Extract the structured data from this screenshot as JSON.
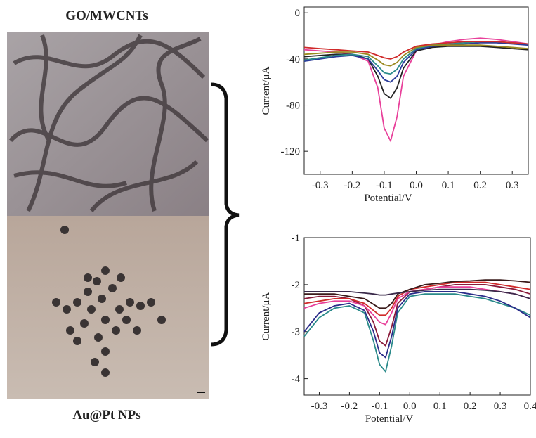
{
  "panels": {
    "top_label": "GO/MWCNTs",
    "bottom_label": "Au@Pt NPs"
  },
  "chart_data": [
    {
      "type": "line",
      "xlabel": "Potential/V",
      "ylabel": "Current/μA",
      "xlim": [
        -0.35,
        0.35
      ],
      "ylim": [
        -140,
        5
      ],
      "xticks": [
        -0.3,
        -0.2,
        -0.1,
        {
          "value": 0,
          "label": "0.0"
        },
        0.1,
        0.2,
        0.3
      ],
      "yticks": [
        0,
        -40,
        -80,
        -120
      ],
      "x": [
        -0.35,
        -0.3,
        -0.25,
        -0.2,
        -0.15,
        -0.12,
        -0.1,
        -0.08,
        -0.06,
        -0.04,
        0,
        0.05,
        0.1,
        0.15,
        0.2,
        0.25,
        0.3,
        0.35
      ],
      "series": [
        {
          "color": "#e8409a",
          "values": [
            -32,
            -33,
            -34,
            -36,
            -42,
            -65,
            -100,
            -111,
            -90,
            -55,
            -33,
            -28,
            -25,
            -23,
            -22,
            -23,
            -25,
            -27
          ]
        },
        {
          "color": "#222222",
          "values": [
            -38,
            -37,
            -36,
            -36,
            -40,
            -55,
            -70,
            -74,
            -65,
            -48,
            -33,
            -30,
            -29,
            -29,
            -29,
            -30,
            -31,
            -32
          ]
        },
        {
          "color": "#2b3c9a",
          "values": [
            -42,
            -40,
            -38,
            -37,
            -40,
            -50,
            -58,
            -60,
            -55,
            -43,
            -32,
            -29,
            -28,
            -27,
            -26,
            -26,
            -27,
            -28
          ]
        },
        {
          "color": "#2a8a8a",
          "values": [
            -41,
            -39,
            -37,
            -36,
            -38,
            -46,
            -52,
            -53,
            -49,
            -40,
            -31,
            -28,
            -27,
            -26,
            -25,
            -25,
            -26,
            -27
          ]
        },
        {
          "color": "#9a8a20",
          "values": [
            -36,
            -35,
            -34,
            -34,
            -36,
            -41,
            -45,
            -46,
            -43,
            -37,
            -30,
            -28,
            -28,
            -28,
            -28,
            -29,
            -30,
            -31
          ]
        },
        {
          "color": "#d02a2a",
          "values": [
            -30,
            -31,
            -32,
            -33,
            -34,
            -37,
            -39,
            -40,
            -38,
            -34,
            -29,
            -27,
            -26,
            -25,
            -25,
            -25,
            -26,
            -27
          ]
        }
      ]
    },
    {
      "type": "line",
      "xlabel": "Potential/V",
      "ylabel": "Current/μA",
      "xlim": [
        -0.35,
        0.4
      ],
      "ylim": [
        -4.35,
        -1
      ],
      "xticks": [
        -0.3,
        -0.2,
        -0.1,
        {
          "value": 0,
          "label": "0.0"
        },
        0.1,
        0.2,
        0.3,
        0.4
      ],
      "yticks": [
        -1,
        -2,
        -3,
        -4
      ],
      "x": [
        -0.35,
        -0.3,
        -0.25,
        -0.2,
        -0.15,
        -0.12,
        -0.1,
        -0.08,
        -0.06,
        -0.04,
        0,
        0.05,
        0.1,
        0.15,
        0.2,
        0.25,
        0.3,
        0.35,
        0.4
      ],
      "series": [
        {
          "color": "#2a8a8a",
          "values": [
            -3.1,
            -2.7,
            -2.5,
            -2.45,
            -2.6,
            -3.2,
            -3.7,
            -3.85,
            -3.3,
            -2.6,
            -2.25,
            -2.2,
            -2.2,
            -2.2,
            -2.25,
            -2.3,
            -2.4,
            -2.5,
            -2.65
          ]
        },
        {
          "color": "#2b2c8a",
          "values": [
            -3.0,
            -2.6,
            -2.45,
            -2.4,
            -2.55,
            -3.0,
            -3.45,
            -3.55,
            -3.1,
            -2.5,
            -2.2,
            -2.15,
            -2.15,
            -2.15,
            -2.2,
            -2.25,
            -2.35,
            -2.5,
            -2.7
          ]
        },
        {
          "color": "#8a1a3a",
          "values": [
            -2.3,
            -2.25,
            -2.25,
            -2.3,
            -2.45,
            -2.8,
            -3.2,
            -3.3,
            -2.9,
            -2.4,
            -2.15,
            -2.1,
            -2.05,
            -2.0,
            -2.0,
            -2.0,
            -2.05,
            -2.1,
            -2.2
          ]
        },
        {
          "color": "#e8409a",
          "values": [
            -2.5,
            -2.4,
            -2.35,
            -2.35,
            -2.45,
            -2.65,
            -2.8,
            -2.85,
            -2.6,
            -2.3,
            -2.15,
            -2.1,
            -2.05,
            -2.05,
            -2.05,
            -2.1,
            -2.15,
            -2.2,
            -2.3
          ]
        },
        {
          "color": "#d02a2a",
          "values": [
            -2.4,
            -2.35,
            -2.3,
            -2.3,
            -2.4,
            -2.55,
            -2.65,
            -2.65,
            -2.5,
            -2.25,
            -2.1,
            -2.05,
            -2.0,
            -1.95,
            -1.95,
            -1.95,
            -2.0,
            -2.05,
            -2.1
          ]
        },
        {
          "color": "#3a1a1a",
          "values": [
            -2.2,
            -2.2,
            -2.2,
            -2.25,
            -2.3,
            -2.42,
            -2.5,
            -2.5,
            -2.4,
            -2.2,
            -2.1,
            -2.0,
            -1.97,
            -1.93,
            -1.92,
            -1.9,
            -1.9,
            -1.92,
            -1.95
          ]
        },
        {
          "color": "#3a2a4a",
          "values": [
            -2.15,
            -2.15,
            -2.15,
            -2.15,
            -2.18,
            -2.2,
            -2.22,
            -2.22,
            -2.2,
            -2.18,
            -2.15,
            -2.12,
            -2.1,
            -2.1,
            -2.1,
            -2.12,
            -2.15,
            -2.2,
            -2.3
          ]
        }
      ]
    }
  ]
}
